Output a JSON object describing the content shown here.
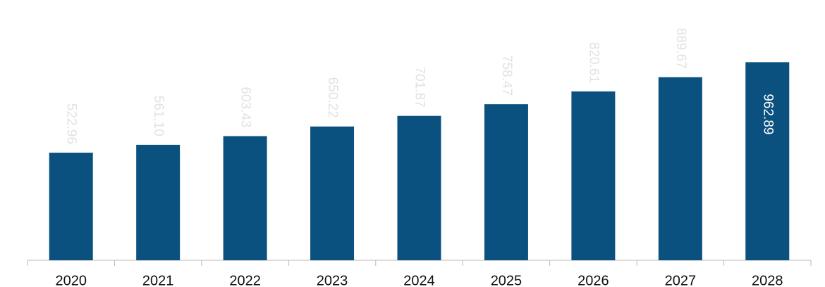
{
  "chart_data": {
    "type": "bar",
    "categories": [
      "2020",
      "2021",
      "2022",
      "2023",
      "2024",
      "2025",
      "2026",
      "2027",
      "2028"
    ],
    "values": [
      522.96,
      561.1,
      603.43,
      650.22,
      701.87,
      758.47,
      820.61,
      889.67,
      962.89
    ],
    "value_labels": [
      "522.96",
      "561.10",
      "603.43",
      "650.22",
      "701.87",
      "758.47",
      "820.61",
      "889.67",
      "962.89"
    ],
    "color": "#0b517f",
    "ylim": [
      0,
      1265
    ]
  }
}
